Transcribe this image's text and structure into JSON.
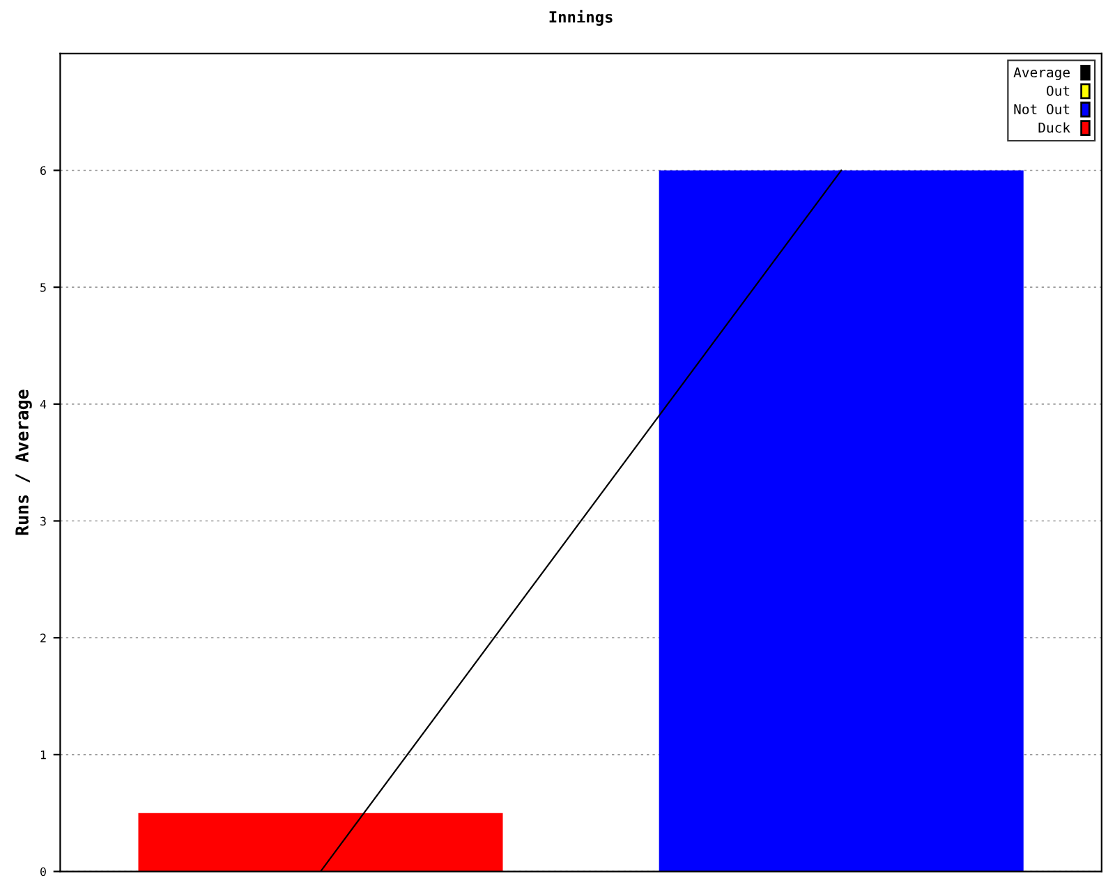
{
  "chart_data": {
    "type": "bar",
    "title": "Innings",
    "ylabel": "Runs / Average",
    "categories": [
      null,
      null
    ],
    "series": [
      {
        "name": "Average",
        "type": "line",
        "color": "#000000",
        "values": [
          0,
          6
        ]
      },
      {
        "name": "Out",
        "color": "#ffff00",
        "values": [
          null,
          null
        ]
      },
      {
        "name": "Not Out",
        "color": "#0000ff",
        "values": [
          null,
          6
        ]
      },
      {
        "name": "Duck",
        "color": "#ff0000",
        "values": [
          0.5,
          null
        ]
      }
    ],
    "ylim": [
      0,
      7
    ],
    "yticks": [
      0,
      1,
      2,
      3,
      4,
      5,
      6
    ],
    "grid": "y",
    "legend": "top right"
  }
}
